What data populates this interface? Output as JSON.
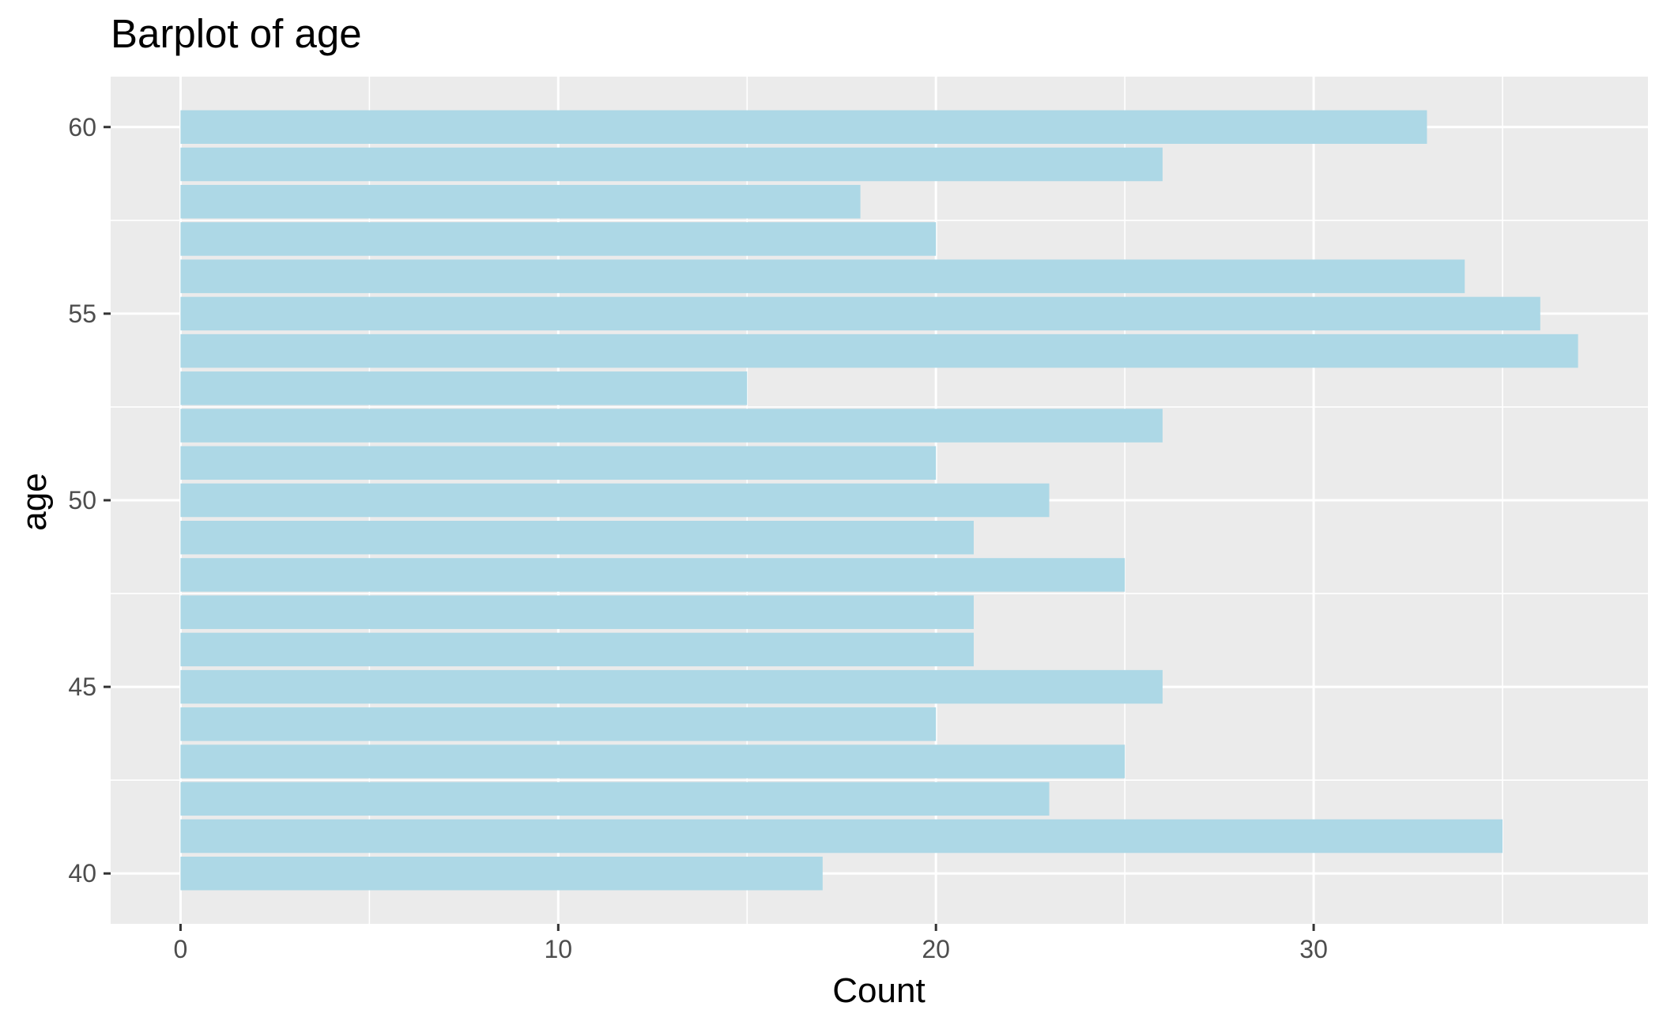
{
  "chart_data": {
    "type": "bar",
    "orientation": "horizontal",
    "title": "Barplot of age",
    "xlabel": "Count",
    "ylabel": "age",
    "categories": [
      40,
      41,
      42,
      43,
      44,
      45,
      46,
      47,
      48,
      49,
      50,
      51,
      52,
      53,
      54,
      55,
      56,
      57,
      58,
      59,
      60
    ],
    "values": [
      17,
      35,
      23,
      25,
      20,
      26,
      21,
      21,
      25,
      21,
      23,
      20,
      26,
      15,
      37,
      36,
      34,
      20,
      18,
      26,
      33
    ],
    "xlim": [
      -1.85,
      38.85
    ],
    "ylim": [
      38.65,
      61.35
    ],
    "x_ticks": [
      0,
      10,
      20,
      30
    ],
    "x_minor": [
      5,
      15,
      25,
      35
    ],
    "y_ticks": [
      40,
      45,
      50,
      55,
      60
    ],
    "y_minor": [
      42.5,
      47.5,
      52.5,
      57.5
    ],
    "grid": true,
    "legend": "none",
    "colors": {
      "bar": "#add8e6",
      "panel": "#ebebeb",
      "grid": "#ffffff",
      "tick_label": "#4d4d4d",
      "tick_mark": "#333333"
    }
  }
}
